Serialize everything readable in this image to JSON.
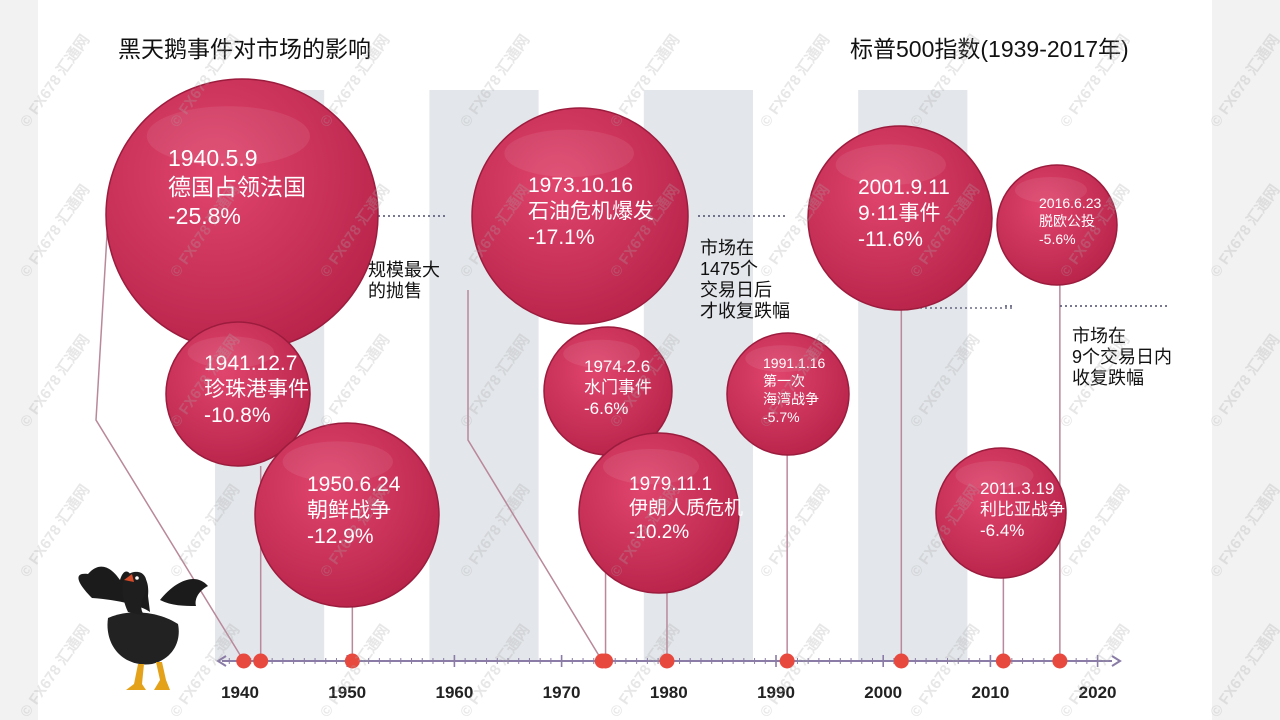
{
  "title": "黑天鹅事件对市场的影响",
  "subtitle": "标普500指数(1939-2017年)",
  "watermark": "© FX678 汇通网",
  "colors": {
    "bubble": "#c42a52",
    "bubble_highlight": "#e0456d",
    "bubble_edge": "#9c1c3e",
    "band": "#d9dee3",
    "axis": "#8a7ca6",
    "dot": "#e8493f",
    "connector": "#b9889a",
    "tick_label": "#222222"
  },
  "notes": [
    {
      "id": "largest-selloff",
      "lines": [
        "规模最大",
        "的抛售"
      ]
    },
    {
      "id": "recovery-1475",
      "lines": [
        "市场在",
        "1475个",
        "交易日后",
        "才收复跌幅"
      ]
    },
    {
      "id": "recovery-9",
      "lines": [
        "市场在",
        "9个交易日内",
        "收复跌幅"
      ]
    }
  ],
  "chart_data": {
    "type": "scatter",
    "title": "黑天鹅事件对市场的影响",
    "subtitle": "标普500指数(1939-2017年)",
    "xlabel": "",
    "ylabel": "",
    "x_range": [
      1938,
      2021
    ],
    "x_ticks": [
      1940,
      1950,
      1960,
      1970,
      1980,
      1990,
      2000,
      2010,
      2020
    ],
    "shaded_decades": [
      [
        1940,
        1950
      ],
      [
        1960,
        1970
      ],
      [
        1980,
        1990
      ],
      [
        2000,
        2010
      ]
    ],
    "grid": false,
    "legend": "none",
    "series": [
      {
        "values": [
          {
            "date": "1940.5.9",
            "year": 1940.35,
            "event": "德国占领法国",
            "change": "-25.8%",
            "value": -25.8
          },
          {
            "date": "1941.12.7",
            "year": 1941.93,
            "event": "珍珠港事件",
            "change": "-10.8%",
            "value": -10.8
          },
          {
            "date": "1950.6.24",
            "year": 1950.48,
            "event": "朝鲜战争",
            "change": "-12.9%",
            "value": -12.9
          },
          {
            "date": "1973.10.16",
            "year": 1973.79,
            "event": "石油危机爆发",
            "change": "-17.1%",
            "value": -17.1
          },
          {
            "date": "1974.2.6",
            "year": 1974.1,
            "event": "水门事件",
            "change": "-6.6%",
            "value": -6.6
          },
          {
            "date": "1979.11.1",
            "year": 1979.83,
            "event": "伊朗人质危机",
            "change": "-10.2%",
            "value": -10.2
          },
          {
            "date": "1991.1.16",
            "year": 1991.04,
            "event": "第一次海湾战争",
            "event_lines": [
              "第一次",
              "海湾战争"
            ],
            "change": "-5.7%",
            "value": -5.7
          },
          {
            "date": "2001.9.11",
            "year": 2001.69,
            "event": "9·11事件",
            "change": "-11.6%",
            "value": -11.6
          },
          {
            "date": "2011.3.19",
            "year": 2011.21,
            "event": "利比亚战争",
            "change": "-6.4%",
            "value": -6.4
          },
          {
            "date": "2016.6.23",
            "year": 2016.48,
            "event": "脱欧公投",
            "change": "-5.6%",
            "value": -5.6
          }
        ]
      }
    ]
  }
}
